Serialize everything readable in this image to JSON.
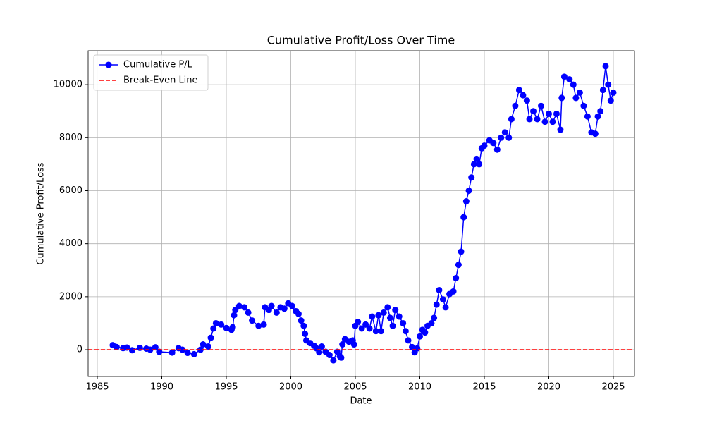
{
  "chart_data": {
    "type": "line",
    "title": "Cumulative Profit/Loss Over Time",
    "x_label": "Date",
    "y_label": "Cumulative Profit/Loss",
    "x": [
      1986.2,
      1986.5,
      1987,
      1987.3,
      1987.7,
      1988.3,
      1988.8,
      1989.1,
      1989.5,
      1989.8,
      1990.8,
      1991.3,
      1991.6,
      1992,
      1992.5,
      1993,
      1993.2,
      1993.6,
      1993.8,
      1994,
      1994.2,
      1994.6,
      1995,
      1995.4,
      1995.5,
      1995.6,
      1995.7,
      1996,
      1996.4,
      1996.7,
      1997,
      1997.5,
      1997.9,
      1998,
      1998.3,
      1998.5,
      1998.9,
      1999.2,
      1999.5,
      1999.8,
      2000.1,
      2000.4,
      2000.6,
      2000.8,
      2001,
      2001.1,
      2001.2,
      2001.5,
      2001.8,
      2002,
      2002.2,
      2002.4,
      2002.7,
      2003,
      2003.3,
      2003.6,
      2003.8,
      2003.9,
      2004,
      2004.2,
      2004.5,
      2004.8,
      2004.9,
      2005,
      2005.2,
      2005.5,
      2005.8,
      2006.1,
      2006.3,
      2006.6,
      2006.8,
      2007,
      2007.2,
      2007.5,
      2007.7,
      2007.9,
      2008.1,
      2008.4,
      2008.7,
      2008.9,
      2009.1,
      2009.4,
      2009.6,
      2009.8,
      2010,
      2010.2,
      2010.4,
      2010.6,
      2010.9,
      2011.1,
      2011.3,
      2011.5,
      2011.8,
      2012,
      2012.3,
      2012.6,
      2012.8,
      2013,
      2013.2,
      2013.4,
      2013.6,
      2013.8,
      2014,
      2014.2,
      2014.4,
      2014.6,
      2014.8,
      2015,
      2015.4,
      2015.7,
      2016,
      2016.3,
      2016.6,
      2016.9,
      2017.1,
      2017.4,
      2017.7,
      2018,
      2018.3,
      2018.5,
      2018.8,
      2019.1,
      2019.4,
      2019.7,
      2020,
      2020.3,
      2020.6,
      2020.9,
      2021,
      2021.2,
      2021.6,
      2021.9,
      2022.1,
      2022.4,
      2022.7,
      2023,
      2023.3,
      2023.6,
      2023.8,
      2024,
      2024.2,
      2024.4,
      2024.6,
      2024.8,
      2025
    ],
    "series": [
      {
        "name": "Cumulative P/L",
        "color": "#0000ff",
        "marker": "o",
        "values": [
          170,
          100,
          60,
          80,
          -20,
          70,
          40,
          0,
          90,
          -80,
          -110,
          60,
          0,
          -120,
          -170,
          0,
          200,
          120,
          450,
          800,
          1000,
          950,
          820,
          750,
          850,
          1300,
          1500,
          1650,
          1600,
          1400,
          1100,
          900,
          950,
          1600,
          1500,
          1650,
          1400,
          1600,
          1550,
          1750,
          1650,
          1450,
          1350,
          1100,
          900,
          600,
          350,
          250,
          150,
          50,
          -100,
          120,
          -80,
          -200,
          -400,
          -80,
          -250,
          -300,
          200,
          400,
          300,
          350,
          200,
          900,
          1050,
          800,
          950,
          800,
          1250,
          700,
          1300,
          700,
          1400,
          1600,
          1200,
          900,
          1500,
          1250,
          1000,
          700,
          350,
          100,
          -100,
          50,
          500,
          750,
          650,
          900,
          1000,
          1200,
          1700,
          2250,
          1900,
          1600,
          2100,
          2200,
          2700,
          3200,
          3700,
          5000,
          5600,
          6000,
          6500,
          7000,
          7200,
          7000,
          7600,
          7700,
          7900,
          7800,
          7550,
          8000,
          8200,
          8000,
          8700,
          9200,
          9800,
          9600,
          9400,
          8700,
          9000,
          8700,
          9200,
          8600,
          8900,
          8600,
          8900,
          8300,
          9500,
          10300,
          10200,
          10000,
          9500,
          9700,
          9200,
          8800,
          8200,
          8150,
          8800,
          9000,
          9800,
          10700,
          10000,
          9400,
          9700
        ]
      }
    ],
    "hlines": [
      {
        "name": "Break-Even Line",
        "color": "#ff0000",
        "value": 0,
        "dashed": true
      }
    ],
    "xlim": [
      1984.29,
      2026.64
    ],
    "ylim": [
      -1010,
      11280
    ],
    "xticks": [
      1985,
      1990,
      1995,
      2000,
      2005,
      2010,
      2015,
      2020,
      2025
    ],
    "yticks": [
      0,
      2000,
      4000,
      6000,
      8000,
      10000
    ],
    "grid": true,
    "legend": "upper left"
  }
}
